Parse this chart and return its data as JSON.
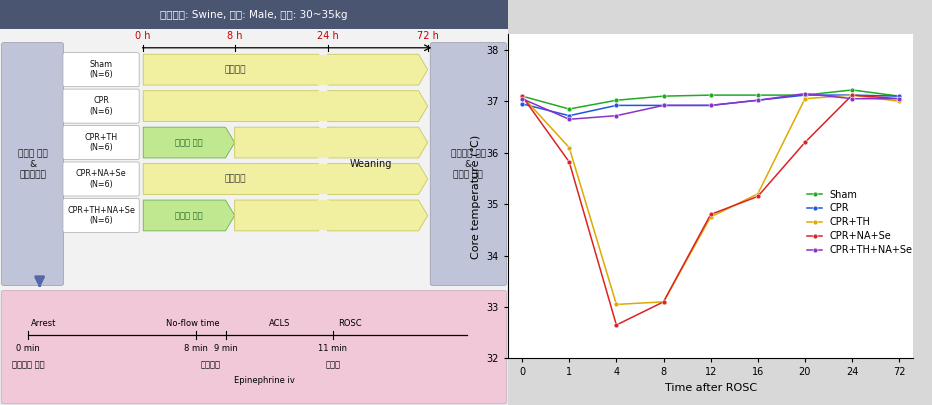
{
  "title_bar": "실험동물: Swine, 성별: Male, 체중: 30~35kg",
  "title_bar_bg": "#4a5572",
  "title_bar_fg": "#ffffff",
  "fig_bg": "#d8d8d8",
  "protocol_bg": "#e8e8ee",
  "groups": [
    {
      "name": "Sham\n(N=6)",
      "arrow_label": "정상체온",
      "green": false
    },
    {
      "name": "CPR\n(N=6)",
      "arrow_label": "",
      "green": false
    },
    {
      "name": "CPR+TH\n(N=6)",
      "arrow_label": "저체온 적용",
      "green": true
    },
    {
      "name": "CPR+NA+Se\n(N=6)",
      "arrow_label": "정상체온",
      "green": false
    },
    {
      "name": "CPR+TH+NA+Se\n(N=6)",
      "arrow_label": "저체온 적용",
      "green": true
    }
  ],
  "left_label": "심정지 유도\n&\n심폐소생술",
  "right_label": "신경학적 검진\n&\n뇌조직 채취",
  "weaning_label": "Weaning",
  "timeline_hours": [
    "0 h",
    "8 h",
    "24 h",
    "72 h"
  ],
  "timeline_color": "#cc0000",
  "bottom_bg": "#f0c8d8",
  "bottom_epinephrine": "Epinephrine iv",
  "time_x": [
    0,
    1,
    4,
    8,
    12,
    16,
    20,
    24,
    72
  ],
  "series": {
    "Sham": {
      "color": "#22aa22",
      "values": [
        37.1,
        36.85,
        37.02,
        37.1,
        37.12,
        37.12,
        37.12,
        37.22,
        37.1
      ]
    },
    "CPR": {
      "color": "#2255dd",
      "values": [
        36.95,
        36.72,
        36.92,
        36.92,
        36.92,
        37.02,
        37.12,
        37.12,
        37.1
      ]
    },
    "CPR+TH": {
      "color": "#ddaa00",
      "values": [
        37.1,
        36.1,
        33.05,
        33.1,
        34.75,
        35.2,
        37.05,
        37.12,
        37.0
      ]
    },
    "CPR+NA+Se": {
      "color": "#dd2222",
      "values": [
        37.1,
        35.82,
        32.65,
        33.1,
        34.8,
        35.15,
        36.2,
        37.12,
        37.05
      ]
    },
    "CPR+TH+NA+Se": {
      "color": "#8833cc",
      "values": [
        37.05,
        36.65,
        36.72,
        36.92,
        36.92,
        37.02,
        37.15,
        37.05,
        37.05
      ]
    }
  },
  "ylim": [
    32.0,
    38.3
  ],
  "yticks": [
    32,
    33,
    34,
    35,
    36,
    37,
    38
  ],
  "xlabel": "Time after ROSC",
  "ylabel": "Core temperature (℃)"
}
